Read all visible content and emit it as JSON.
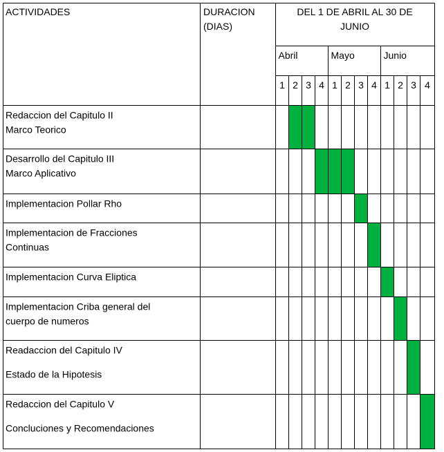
{
  "headers": {
    "activities": "ACTIVIDADES",
    "duration_line1": "DURACION",
    "duration_line2": "(DIAS)",
    "period_line1": "DEL 1 DE ABRIL AL 30 DE",
    "period_line2": "JUNIO"
  },
  "months": [
    {
      "name": "Abril",
      "weeks": [
        "1",
        "2",
        "3",
        "4"
      ]
    },
    {
      "name": "Mayo",
      "weeks": [
        "1",
        "2",
        "3",
        "4"
      ]
    },
    {
      "name": "Junio",
      "weeks": [
        "1",
        "2",
        "3",
        "4"
      ]
    }
  ],
  "activities": [
    {
      "lines": [
        "Redaccion del Capitulo II",
        "Marco Teorico"
      ],
      "duration": "",
      "start_week": 2,
      "end_week": 3
    },
    {
      "lines": [
        "Desarrollo del Capitulo III",
        "Marco Aplicativo"
      ],
      "duration": "",
      "start_week": 4,
      "end_week": 6
    },
    {
      "lines": [
        "Implementacion Pollar Rho"
      ],
      "duration": "",
      "start_week": 7,
      "end_week": 7
    },
    {
      "lines": [
        "Implementacion de Fracciones",
        "Continuas"
      ],
      "duration": "",
      "start_week": 8,
      "end_week": 8
    },
    {
      "lines": [
        "Implementacion Curva Eliptica"
      ],
      "duration": "",
      "start_week": 9,
      "end_week": 9
    },
    {
      "lines": [
        "Implementacion Criba general del",
        "cuerpo de numeros"
      ],
      "duration": "",
      "start_week": 10,
      "end_week": 10
    },
    {
      "lines": [
        "Readaccion del Capitulo IV",
        "Estado de la Hipotesis"
      ],
      "duration": "",
      "start_week": 11,
      "end_week": 11
    },
    {
      "lines": [
        "Redaccion del Capitulo V",
        "Concluciones y Recomendaciones"
      ],
      "duration": "",
      "start_week": 12,
      "end_week": 12
    }
  ],
  "colors": {
    "bar": "#00b140",
    "border": "#000000"
  }
}
